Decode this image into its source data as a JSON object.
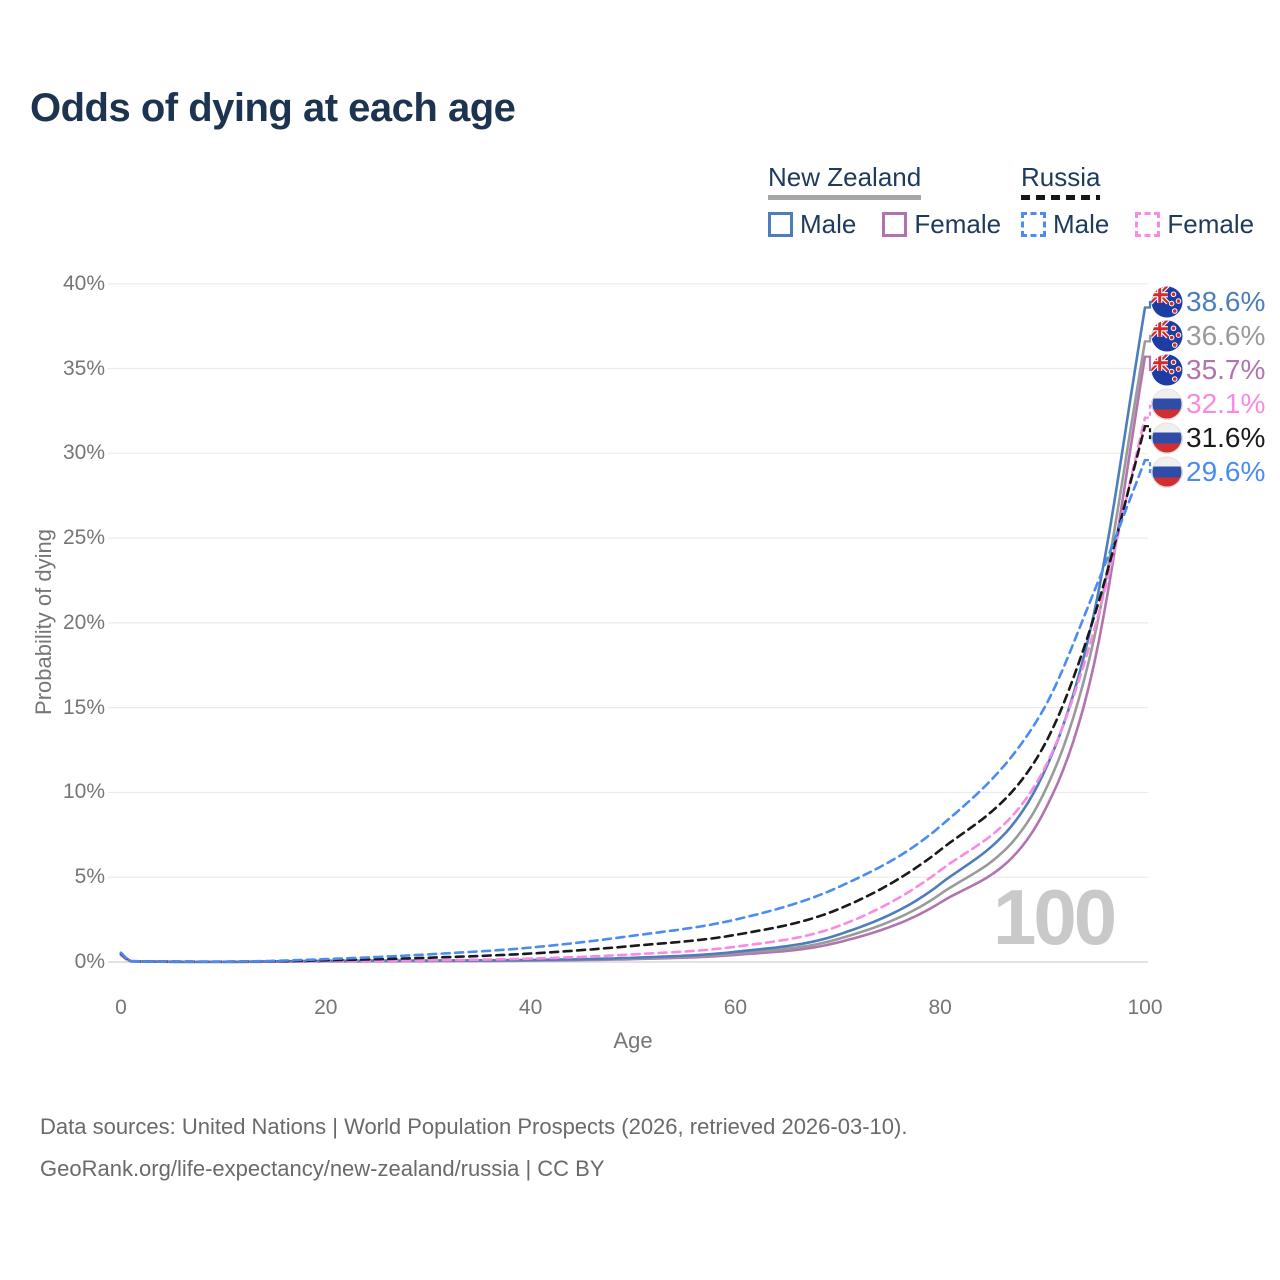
{
  "title": "Odds of dying at each age",
  "watermark_age": "100",
  "legend": {
    "groups": [
      {
        "label": "New Zealand",
        "line_style": "solid",
        "underline_color": "#a6a6a6",
        "items": [
          {
            "label": "Male",
            "color": "#4d7dbb"
          },
          {
            "label": "Female",
            "color": "#b274af"
          }
        ]
      },
      {
        "label": "Russia",
        "line_style": "dashed",
        "underline_color": "#161616",
        "items": [
          {
            "label": "Male",
            "color": "#4a8cf2"
          },
          {
            "label": "Female",
            "color": "#f98ae3"
          }
        ]
      }
    ]
  },
  "chart_data": {
    "type": "line",
    "title": "Odds of dying at each age",
    "xlabel": "Age",
    "ylabel": "Probability of dying",
    "xlim": [
      0,
      100
    ],
    "ylim": [
      0,
      40
    ],
    "x_ticks": [
      0,
      20,
      40,
      60,
      80,
      100
    ],
    "y_ticks": [
      0,
      5,
      10,
      15,
      20,
      25,
      30,
      35,
      40
    ],
    "y_tick_suffix": "%",
    "x_tick_suffix": "",
    "grid": true,
    "legend_position": "top-right",
    "ages": [
      0,
      1,
      10,
      20,
      30,
      40,
      50,
      60,
      70,
      80,
      90,
      95,
      100
    ],
    "series": [
      {
        "name": "New Zealand Male",
        "flag": "nz",
        "style": "solid",
        "color": "#4d7dbb",
        "end_label": "38.6%",
        "values_pct": [
          0.5,
          0.04,
          0.01,
          0.07,
          0.09,
          0.12,
          0.25,
          0.6,
          1.6,
          4.6,
          11.0,
          20.5,
          38.6
        ]
      },
      {
        "name": "New Zealand",
        "flag": "nz",
        "style": "solid",
        "color": "#9a9a9a",
        "end_label": "36.6%",
        "values_pct": [
          0.45,
          0.035,
          0.01,
          0.05,
          0.07,
          0.1,
          0.21,
          0.5,
          1.35,
          4.0,
          9.8,
          19.0,
          36.6
        ]
      },
      {
        "name": "New Zealand Female",
        "flag": "nz",
        "style": "solid",
        "color": "#b274af",
        "end_label": "35.7%",
        "values_pct": [
          0.4,
          0.03,
          0.01,
          0.03,
          0.05,
          0.08,
          0.17,
          0.42,
          1.15,
          3.5,
          8.7,
          17.5,
          35.7
        ]
      },
      {
        "name": "Russia Female",
        "flag": "ru",
        "style": "dashed",
        "color": "#f98ae3",
        "end_label": "32.1%",
        "values_pct": [
          0.45,
          0.04,
          0.01,
          0.05,
          0.1,
          0.2,
          0.45,
          0.9,
          2.1,
          5.4,
          11.2,
          19.5,
          32.1
        ]
      },
      {
        "name": "Russia",
        "flag": "ru",
        "style": "dashed",
        "color": "#1a1a1a",
        "end_label": "31.6%",
        "values_pct": [
          0.5,
          0.045,
          0.02,
          0.1,
          0.25,
          0.5,
          0.95,
          1.6,
          3.1,
          6.6,
          12.6,
          20.3,
          31.6
        ]
      },
      {
        "name": "Russia Male",
        "flag": "ru",
        "style": "dashed",
        "color": "#4a8cf2",
        "end_label": "29.6%",
        "values_pct": [
          0.55,
          0.05,
          0.02,
          0.17,
          0.45,
          0.85,
          1.55,
          2.5,
          4.4,
          8.0,
          14.8,
          21.8,
          29.6
        ]
      }
    ]
  },
  "footer": {
    "line1": "Data sources: United Nations | World Population Prospects (2026, retrieved 2026-03-10).",
    "line2": "GeoRank.org/life-expectancy/new-zealand/russia | CC BY"
  }
}
